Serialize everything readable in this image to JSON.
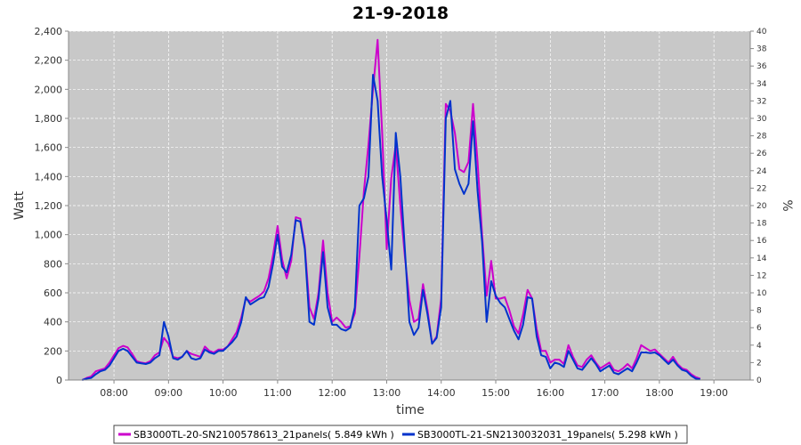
{
  "chart_data": {
    "type": "line",
    "title": "21-9-2018",
    "xlabel": "time",
    "ylabel": "Watt",
    "y2label": "%",
    "ylim": [
      0,
      2400
    ],
    "y2lim": [
      0,
      40
    ],
    "xlim": [
      "07:10",
      "19:40"
    ],
    "grid": true,
    "legend_position": "bottom",
    "x_ticks": [
      "08:00",
      "09:00",
      "10:00",
      "11:00",
      "12:00",
      "13:00",
      "14:00",
      "15:00",
      "16:00",
      "17:00",
      "18:00",
      "19:00"
    ],
    "y_ticks": [
      "0",
      "200",
      "400",
      "600",
      "800",
      "1,000",
      "1,200",
      "1,400",
      "1,600",
      "1,800",
      "2,000",
      "2,200",
      "2,400"
    ],
    "y2_ticks": [
      "0",
      "2",
      "4",
      "6",
      "8",
      "10",
      "12",
      "14",
      "16",
      "18",
      "20",
      "22",
      "24",
      "26",
      "28",
      "30",
      "32",
      "34",
      "36",
      "38",
      "40"
    ],
    "series": [
      {
        "name": "SB3000TL-20-SN2100578613_21panels( 5.849 kWh )",
        "color": "#cc00cc",
        "points": [
          [
            "07:25",
            0
          ],
          [
            "07:30",
            15
          ],
          [
            "07:35",
            25
          ],
          [
            "07:40",
            60
          ],
          [
            "07:45",
            70
          ],
          [
            "07:50",
            80
          ],
          [
            "07:55",
            120
          ],
          [
            "08:00",
            170
          ],
          [
            "08:05",
            220
          ],
          [
            "08:10",
            235
          ],
          [
            "08:15",
            225
          ],
          [
            "08:20",
            180
          ],
          [
            "08:25",
            130
          ],
          [
            "08:30",
            120
          ],
          [
            "08:35",
            115
          ],
          [
            "08:40",
            130
          ],
          [
            "08:45",
            170
          ],
          [
            "08:50",
            190
          ],
          [
            "08:55",
            290
          ],
          [
            "09:00",
            250
          ],
          [
            "09:05",
            160
          ],
          [
            "09:10",
            150
          ],
          [
            "09:15",
            160
          ],
          [
            "09:20",
            200
          ],
          [
            "09:25",
            180
          ],
          [
            "09:30",
            170
          ],
          [
            "09:35",
            160
          ],
          [
            "09:40",
            230
          ],
          [
            "09:45",
            200
          ],
          [
            "09:50",
            190
          ],
          [
            "09:55",
            210
          ],
          [
            "10:00",
            210
          ],
          [
            "10:05",
            230
          ],
          [
            "10:10",
            280
          ],
          [
            "10:15",
            330
          ],
          [
            "10:20",
            430
          ],
          [
            "10:25",
            560
          ],
          [
            "10:30",
            540
          ],
          [
            "10:35",
            560
          ],
          [
            "10:40",
            580
          ],
          [
            "10:45",
            610
          ],
          [
            "10:50",
            700
          ],
          [
            "10:55",
            860
          ],
          [
            "11:00",
            1060
          ],
          [
            "11:05",
            830
          ],
          [
            "11:10",
            700
          ],
          [
            "11:15",
            820
          ],
          [
            "11:20",
            1120
          ],
          [
            "11:25",
            1110
          ],
          [
            "11:30",
            920
          ],
          [
            "11:35",
            500
          ],
          [
            "11:40",
            420
          ],
          [
            "11:45",
            600
          ],
          [
            "11:50",
            960
          ],
          [
            "11:55",
            600
          ],
          [
            "12:00",
            400
          ],
          [
            "12:05",
            430
          ],
          [
            "12:10",
            400
          ],
          [
            "12:15",
            360
          ],
          [
            "12:20",
            370
          ],
          [
            "12:25",
            460
          ],
          [
            "12:30",
            850
          ],
          [
            "12:35",
            1300
          ],
          [
            "12:40",
            1620
          ],
          [
            "12:45",
            2000
          ],
          [
            "12:50",
            2340
          ],
          [
            "12:55",
            1700
          ],
          [
            "13:00",
            900
          ],
          [
            "13:05",
            1390
          ],
          [
            "13:10",
            1620
          ],
          [
            "13:15",
            1200
          ],
          [
            "13:20",
            850
          ],
          [
            "13:25",
            550
          ],
          [
            "13:30",
            400
          ],
          [
            "13:35",
            420
          ],
          [
            "13:40",
            660
          ],
          [
            "13:45",
            480
          ],
          [
            "13:50",
            250
          ],
          [
            "13:55",
            300
          ],
          [
            "14:00",
            560
          ],
          [
            "14:05",
            1900
          ],
          [
            "14:10",
            1850
          ],
          [
            "14:15",
            1700
          ],
          [
            "14:20",
            1450
          ],
          [
            "14:25",
            1430
          ],
          [
            "14:30",
            1500
          ],
          [
            "14:35",
            1900
          ],
          [
            "14:40",
            1500
          ],
          [
            "14:45",
            1000
          ],
          [
            "14:50",
            580
          ],
          [
            "14:55",
            820
          ],
          [
            "15:00",
            560
          ],
          [
            "15:05",
            560
          ],
          [
            "15:10",
            570
          ],
          [
            "15:15",
            480
          ],
          [
            "15:20",
            370
          ],
          [
            "15:25",
            320
          ],
          [
            "15:30",
            450
          ],
          [
            "15:35",
            620
          ],
          [
            "15:40",
            560
          ],
          [
            "15:45",
            350
          ],
          [
            "15:50",
            200
          ],
          [
            "15:55",
            200
          ],
          [
            "16:00",
            120
          ],
          [
            "16:05",
            140
          ],
          [
            "16:10",
            140
          ],
          [
            "16:15",
            110
          ],
          [
            "16:20",
            240
          ],
          [
            "16:25",
            160
          ],
          [
            "16:30",
            100
          ],
          [
            "16:35",
            90
          ],
          [
            "16:40",
            140
          ],
          [
            "16:45",
            170
          ],
          [
            "16:50",
            120
          ],
          [
            "16:55",
            80
          ],
          [
            "17:00",
            100
          ],
          [
            "17:05",
            120
          ],
          [
            "17:10",
            70
          ],
          [
            "17:15",
            60
          ],
          [
            "17:20",
            80
          ],
          [
            "17:25",
            110
          ],
          [
            "17:30",
            80
          ],
          [
            "17:35",
            150
          ],
          [
            "17:40",
            240
          ],
          [
            "17:45",
            220
          ],
          [
            "17:50",
            200
          ],
          [
            "17:55",
            210
          ],
          [
            "18:00",
            180
          ],
          [
            "18:05",
            150
          ],
          [
            "18:10",
            120
          ],
          [
            "18:15",
            160
          ],
          [
            "18:20",
            110
          ],
          [
            "18:25",
            80
          ],
          [
            "18:30",
            70
          ],
          [
            "18:35",
            40
          ],
          [
            "18:40",
            20
          ],
          [
            "18:45",
            10
          ]
        ]
      },
      {
        "name": "SB3000TL-21-SN2130032031_19panels( 5.298 kWh )",
        "color": "#0033cc",
        "points": [
          [
            "07:25",
            0
          ],
          [
            "07:30",
            10
          ],
          [
            "07:35",
            15
          ],
          [
            "07:40",
            40
          ],
          [
            "07:45",
            60
          ],
          [
            "07:50",
            70
          ],
          [
            "07:55",
            100
          ],
          [
            "08:00",
            150
          ],
          [
            "08:05",
            200
          ],
          [
            "08:10",
            215
          ],
          [
            "08:15",
            200
          ],
          [
            "08:20",
            160
          ],
          [
            "08:25",
            120
          ],
          [
            "08:30",
            115
          ],
          [
            "08:35",
            110
          ],
          [
            "08:40",
            120
          ],
          [
            "08:45",
            150
          ],
          [
            "08:50",
            170
          ],
          [
            "08:55",
            400
          ],
          [
            "09:00",
            300
          ],
          [
            "09:05",
            150
          ],
          [
            "09:10",
            140
          ],
          [
            "09:15",
            160
          ],
          [
            "09:20",
            200
          ],
          [
            "09:25",
            150
          ],
          [
            "09:30",
            140
          ],
          [
            "09:35",
            150
          ],
          [
            "09:40",
            210
          ],
          [
            "09:45",
            190
          ],
          [
            "09:50",
            180
          ],
          [
            "09:55",
            200
          ],
          [
            "10:00",
            200
          ],
          [
            "10:05",
            230
          ],
          [
            "10:10",
            260
          ],
          [
            "10:15",
            300
          ],
          [
            "10:20",
            400
          ],
          [
            "10:25",
            570
          ],
          [
            "10:30",
            520
          ],
          [
            "10:35",
            540
          ],
          [
            "10:40",
            560
          ],
          [
            "10:45",
            570
          ],
          [
            "10:50",
            640
          ],
          [
            "10:55",
            800
          ],
          [
            "11:00",
            1000
          ],
          [
            "11:05",
            780
          ],
          [
            "11:10",
            740
          ],
          [
            "11:15",
            860
          ],
          [
            "11:20",
            1100
          ],
          [
            "11:25",
            1090
          ],
          [
            "11:30",
            900
          ],
          [
            "11:35",
            400
          ],
          [
            "11:40",
            380
          ],
          [
            "11:45",
            560
          ],
          [
            "11:50",
            880
          ],
          [
            "11:55",
            500
          ],
          [
            "12:00",
            380
          ],
          [
            "12:05",
            380
          ],
          [
            "12:10",
            350
          ],
          [
            "12:15",
            340
          ],
          [
            "12:20",
            360
          ],
          [
            "12:25",
            500
          ],
          [
            "12:30",
            1200
          ],
          [
            "12:35",
            1250
          ],
          [
            "12:40",
            1400
          ],
          [
            "12:45",
            2100
          ],
          [
            "12:50",
            1920
          ],
          [
            "12:55",
            1400
          ],
          [
            "13:00",
            1100
          ],
          [
            "13:05",
            760
          ],
          [
            "13:10",
            1700
          ],
          [
            "13:15",
            1400
          ],
          [
            "13:20",
            900
          ],
          [
            "13:25",
            400
          ],
          [
            "13:30",
            310
          ],
          [
            "13:35",
            360
          ],
          [
            "13:40",
            620
          ],
          [
            "13:45",
            450
          ],
          [
            "13:50",
            250
          ],
          [
            "13:55",
            290
          ],
          [
            "14:00",
            500
          ],
          [
            "14:05",
            1800
          ],
          [
            "14:10",
            1920
          ],
          [
            "14:15",
            1450
          ],
          [
            "14:20",
            1350
          ],
          [
            "14:25",
            1280
          ],
          [
            "14:30",
            1350
          ],
          [
            "14:35",
            1780
          ],
          [
            "14:40",
            1300
          ],
          [
            "14:45",
            950
          ],
          [
            "14:50",
            400
          ],
          [
            "14:55",
            680
          ],
          [
            "15:00",
            580
          ],
          [
            "15:05",
            530
          ],
          [
            "15:10",
            500
          ],
          [
            "15:15",
            420
          ],
          [
            "15:20",
            340
          ],
          [
            "15:25",
            280
          ],
          [
            "15:30",
            380
          ],
          [
            "15:35",
            570
          ],
          [
            "15:40",
            560
          ],
          [
            "15:45",
            300
          ],
          [
            "15:50",
            170
          ],
          [
            "15:55",
            160
          ],
          [
            "16:00",
            80
          ],
          [
            "16:05",
            120
          ],
          [
            "16:10",
            110
          ],
          [
            "16:15",
            90
          ],
          [
            "16:20",
            200
          ],
          [
            "16:25",
            140
          ],
          [
            "16:30",
            80
          ],
          [
            "16:35",
            70
          ],
          [
            "16:40",
            110
          ],
          [
            "16:45",
            150
          ],
          [
            "16:50",
            110
          ],
          [
            "16:55",
            60
          ],
          [
            "17:00",
            80
          ],
          [
            "17:05",
            100
          ],
          [
            "17:10",
            50
          ],
          [
            "17:15",
            40
          ],
          [
            "17:20",
            60
          ],
          [
            "17:25",
            80
          ],
          [
            "17:30",
            60
          ],
          [
            "17:35",
            120
          ],
          [
            "17:40",
            190
          ],
          [
            "17:45",
            190
          ],
          [
            "17:50",
            185
          ],
          [
            "17:55",
            190
          ],
          [
            "18:00",
            170
          ],
          [
            "18:05",
            140
          ],
          [
            "18:10",
            110
          ],
          [
            "18:15",
            140
          ],
          [
            "18:20",
            100
          ],
          [
            "18:25",
            70
          ],
          [
            "18:30",
            60
          ],
          [
            "18:35",
            30
          ],
          [
            "18:40",
            10
          ],
          [
            "18:45",
            5
          ]
        ]
      }
    ]
  }
}
